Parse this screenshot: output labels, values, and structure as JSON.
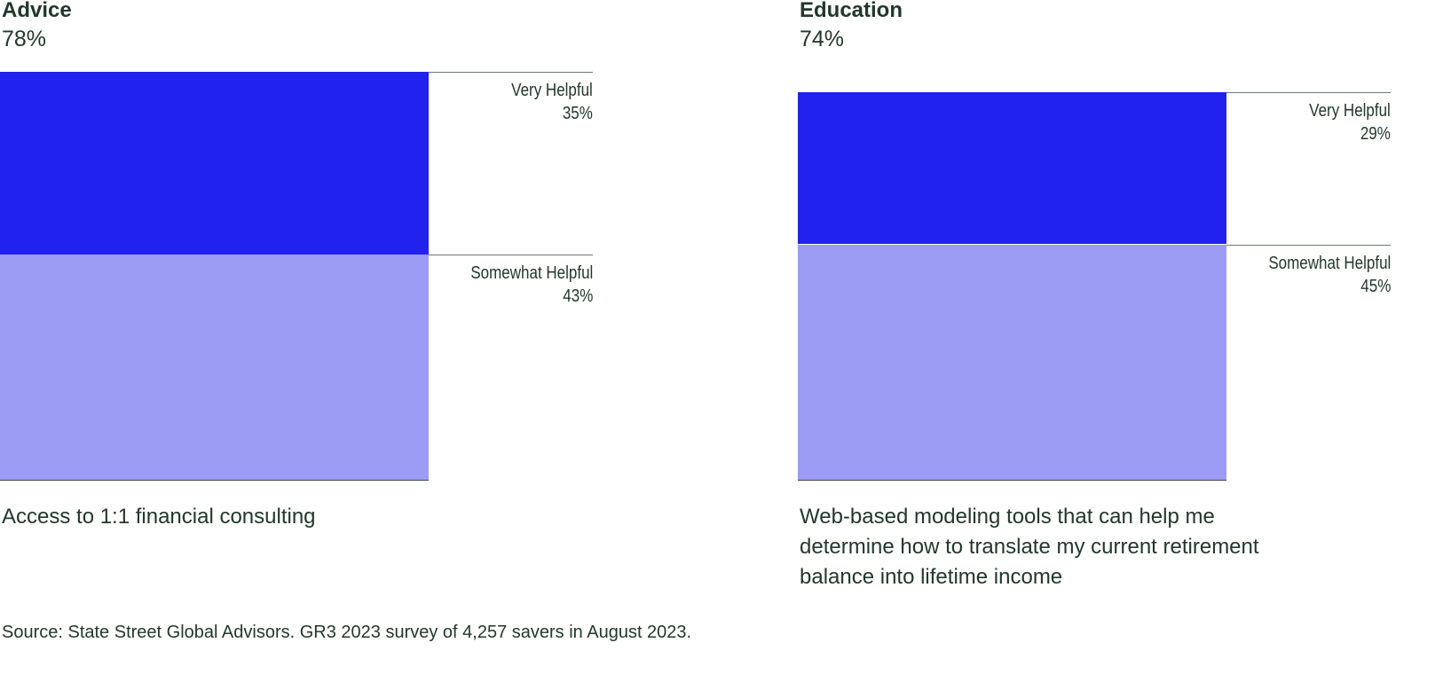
{
  "chart_data": [
    {
      "type": "bar",
      "stacked": true,
      "title": "Advice",
      "total_label": "78%",
      "caption": "Access to 1:1 financial consulting",
      "series": [
        {
          "name": "Very Helpful",
          "value": 35,
          "value_label": "35%",
          "color": "#2222ee"
        },
        {
          "name": "Somewhat Helpful",
          "value": 43,
          "value_label": "43%",
          "color": "#9c9cf5"
        }
      ]
    },
    {
      "type": "bar",
      "stacked": true,
      "title": "Education",
      "total_label": "74%",
      "caption": "Web-based modeling tools that can help me determine how to translate my current retirement balance into lifetime income",
      "series": [
        {
          "name": "Very Helpful",
          "value": 29,
          "value_label": "29%",
          "color": "#2222ee"
        },
        {
          "name": "Somewhat Helpful",
          "value": 45,
          "value_label": "45%",
          "color": "#9c9cf5"
        }
      ]
    }
  ],
  "source": "Source: State Street Global Advisors. GR3 2023 survey of 4,257 savers in August 2023."
}
